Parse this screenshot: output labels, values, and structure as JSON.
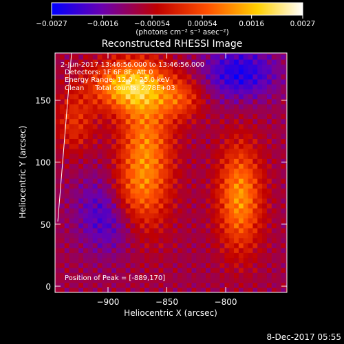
{
  "chart_data": {
    "type": "heatmap",
    "title": "Reconstructed RHESSI Image",
    "xlabel": "Heliocentric X (arcsec)",
    "ylabel": "Heliocentric Y (arcsec)",
    "xlim": [
      -945,
      -748
    ],
    "ylim": [
      -5,
      188
    ],
    "xticks": [
      -900,
      -850,
      -800
    ],
    "xtick_labels": [
      "−900",
      "−850",
      "−800"
    ],
    "yticks": [
      0,
      50,
      100,
      150
    ],
    "ytick_labels": [
      "0",
      "50",
      "100",
      "150"
    ],
    "colorbar": {
      "ticks": [
        -0.0027,
        -0.0016,
        -0.00054,
        0.00054,
        0.0016,
        0.0027
      ],
      "tick_labels": [
        "−0.0027",
        "−0.0016",
        "−0.00054",
        "0.00054",
        "0.0016",
        "0.0027"
      ],
      "unit_label": "(photons cm⁻² s⁻¹ asec⁻²)",
      "range": [
        -0.0027,
        0.0027
      ],
      "colors": [
        "#0000ff",
        "#6a00b0",
        "#c00000",
        "#ff5000",
        "#ffd000",
        "#ffffff"
      ]
    },
    "annotations": {
      "time_range": "2-Jun-2017 13:46:56.000 to 13:46:56.000",
      "detectors": "Detectors: 1F 6F 8F, Att 0",
      "energy_range": "Energy Range: 12.0 - 25.0 keV",
      "method": "Clean     Total counts: 2.78E+03",
      "peak": "Position of Peak = [-889,170]"
    },
    "sources": [
      {
        "x": -885,
        "y": 160,
        "amp": 0.0024,
        "sx": 22,
        "sy": 14
      },
      {
        "x": -870,
        "y": 105,
        "amp": 0.002,
        "sx": 16,
        "sy": 40
      },
      {
        "x": -888,
        "y": 70,
        "amp": 0.0012,
        "sx": 16,
        "sy": 18
      },
      {
        "x": -790,
        "y": 70,
        "amp": 0.0021,
        "sx": 13,
        "sy": 30
      },
      {
        "x": -840,
        "y": 150,
        "amp": 0.0012,
        "sx": 14,
        "sy": 12
      },
      {
        "x": -930,
        "y": 130,
        "amp": 0.001,
        "sx": 12,
        "sy": 18
      },
      {
        "x": -900,
        "y": 60,
        "amp": -0.0016,
        "sx": 18,
        "sy": 22
      },
      {
        "x": -790,
        "y": 170,
        "amp": -0.0015,
        "sx": 22,
        "sy": 15
      }
    ]
  },
  "footer": {
    "date": "8-Dec-2017 05:55"
  }
}
